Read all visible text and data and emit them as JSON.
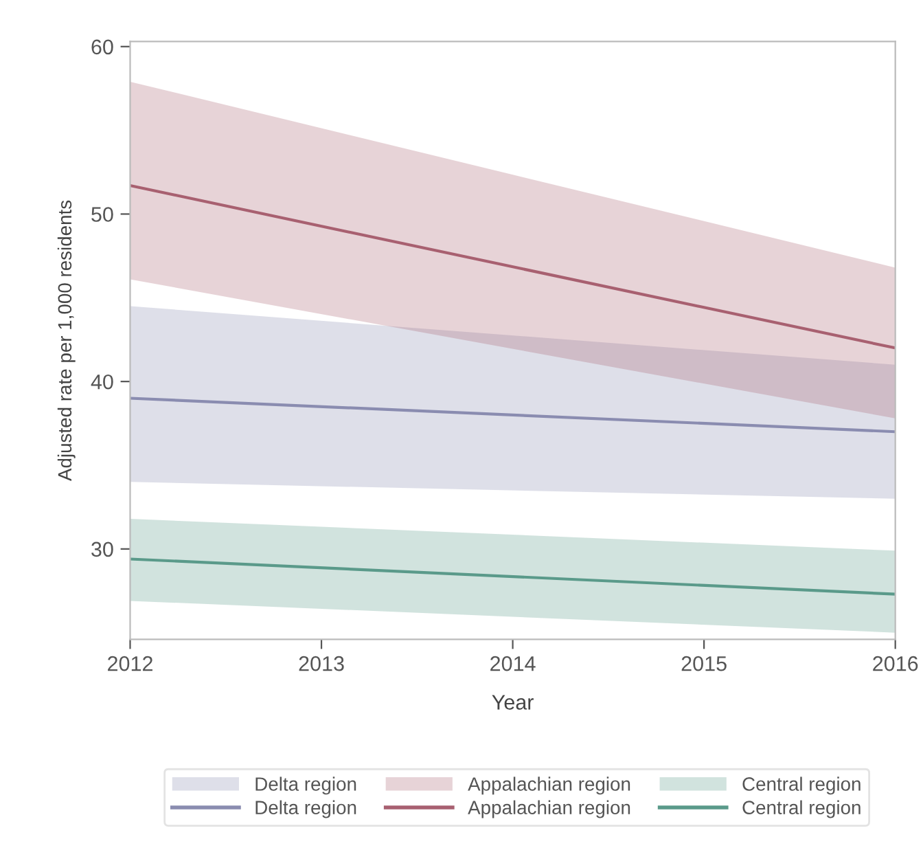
{
  "chart_data": {
    "type": "line",
    "xlabel": "Year",
    "ylabel": "Adjusted rate per 1,000 residents",
    "x": [
      2012,
      2016
    ],
    "series": [
      {
        "name": "Delta region",
        "color": "#8a8cb0",
        "values": [
          39.0,
          37.0
        ],
        "lower": [
          34.0,
          33.0
        ],
        "upper": [
          44.5,
          41.0
        ]
      },
      {
        "name": "Appalachian region",
        "color": "#a86070",
        "values": [
          51.7,
          42.0
        ],
        "lower": [
          46.1,
          37.8
        ],
        "upper": [
          57.9,
          46.8
        ]
      },
      {
        "name": "Central region",
        "color": "#5a9a8a",
        "values": [
          29.4,
          27.3
        ],
        "lower": [
          26.9,
          25.0
        ],
        "upper": [
          31.8,
          29.9
        ]
      }
    ],
    "xlim": [
      2012,
      2016
    ],
    "xticks": [
      2012,
      2013,
      2014,
      2015,
      2016
    ],
    "ylim": [
      24.6,
      60.3
    ],
    "yticks": [
      30,
      40,
      50,
      60
    ],
    "grid": false,
    "legend": "bottom",
    "marker": "none",
    "line_style": "solid"
  }
}
